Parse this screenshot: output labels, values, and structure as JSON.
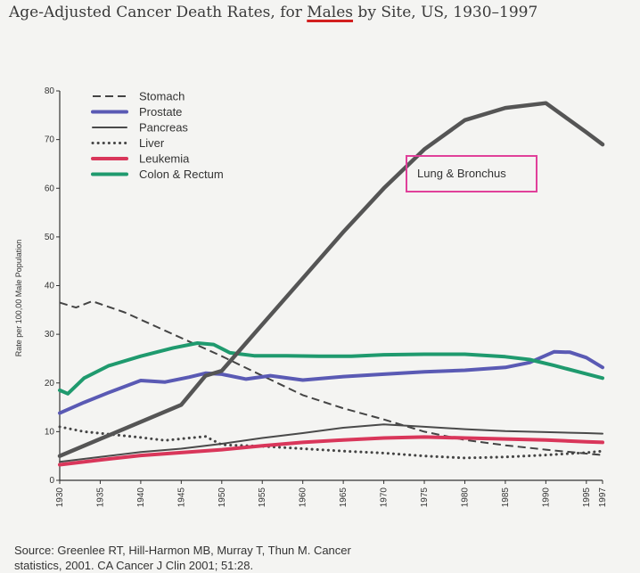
{
  "title": {
    "prefix": "Age-Adjusted Cancer Death Rates, for ",
    "emphasis": "Males",
    "suffix": " by Site, US, 1930–1997"
  },
  "source": {
    "line1": "Source: Greenlee RT, Hill-Harmon MB, Murray T, Thun M. Cancer",
    "line2": "statistics, 2001. CA Cancer J Clin 2001; 51:28."
  },
  "chart_data": {
    "type": "line",
    "title": "Age-Adjusted Cancer Death Rates, for Males by Site, US, 1930–1997",
    "xlabel": "",
    "ylabel": "Rate per 100,00 Male Population",
    "xlim": [
      1930,
      1997
    ],
    "ylim": [
      0,
      80
    ],
    "xticks": [
      "1930",
      "1935",
      "1940",
      "1945",
      "1950",
      "1955",
      "1960",
      "1965",
      "1970",
      "1975",
      "1980",
      "1985",
      "1990",
      "1995",
      "1997"
    ],
    "yticks": [
      "0",
      "10",
      "20",
      "30",
      "40",
      "50",
      "60",
      "70",
      "80"
    ],
    "grid": false,
    "legend_position": "top-left",
    "annotation": {
      "text": "Lung & Bronchus",
      "border_color": "#e0409a"
    },
    "series": [
      {
        "name": "Stomach",
        "color": "#444444",
        "style": "dashed",
        "points": [
          [
            1930,
            36.5
          ],
          [
            1932,
            35.5
          ],
          [
            1934,
            36.8
          ],
          [
            1938,
            34.5
          ],
          [
            1942,
            31.5
          ],
          [
            1946,
            28.5
          ],
          [
            1950,
            25.5
          ],
          [
            1955,
            21.5
          ],
          [
            1960,
            17.5
          ],
          [
            1965,
            14.8
          ],
          [
            1970,
            12.5
          ],
          [
            1975,
            10
          ],
          [
            1980,
            8.3
          ],
          [
            1985,
            7.2
          ],
          [
            1990,
            6.3
          ],
          [
            1995,
            5.5
          ],
          [
            1997,
            5.2
          ]
        ]
      },
      {
        "name": "Prostate",
        "color": "#5a5ab4",
        "style": "solid",
        "points": [
          [
            1930,
            13.8
          ],
          [
            1933,
            16
          ],
          [
            1936,
            18
          ],
          [
            1940,
            20.5
          ],
          [
            1943,
            20.2
          ],
          [
            1946,
            21.2
          ],
          [
            1948,
            22
          ],
          [
            1950,
            21.8
          ],
          [
            1953,
            20.8
          ],
          [
            1956,
            21.5
          ],
          [
            1960,
            20.6
          ],
          [
            1965,
            21.3
          ],
          [
            1970,
            21.8
          ],
          [
            1975,
            22.3
          ],
          [
            1980,
            22.6
          ],
          [
            1985,
            23.2
          ],
          [
            1988,
            24.2
          ],
          [
            1991,
            26.4
          ],
          [
            1993,
            26.3
          ],
          [
            1995,
            25.2
          ],
          [
            1997,
            23.2
          ]
        ]
      },
      {
        "name": "Pancreas",
        "color": "#4a4a4a",
        "style": "solid",
        "points": [
          [
            1930,
            3.8
          ],
          [
            1935,
            4.8
          ],
          [
            1940,
            5.8
          ],
          [
            1945,
            6.5
          ],
          [
            1950,
            7.5
          ],
          [
            1955,
            8.7
          ],
          [
            1960,
            9.7
          ],
          [
            1965,
            10.8
          ],
          [
            1970,
            11.5
          ],
          [
            1975,
            11
          ],
          [
            1980,
            10.5
          ],
          [
            1985,
            10.1
          ],
          [
            1990,
            9.9
          ],
          [
            1995,
            9.7
          ],
          [
            1997,
            9.6
          ]
        ]
      },
      {
        "name": "Liver",
        "color": "#444444",
        "style": "dotted",
        "points": [
          [
            1930,
            11
          ],
          [
            1933,
            10
          ],
          [
            1936,
            9.5
          ],
          [
            1940,
            8.8
          ],
          [
            1943,
            8.2
          ],
          [
            1946,
            8.7
          ],
          [
            1948,
            9
          ],
          [
            1950,
            7.3
          ],
          [
            1955,
            7
          ],
          [
            1960,
            6.5
          ],
          [
            1965,
            6
          ],
          [
            1970,
            5.6
          ],
          [
            1975,
            5
          ],
          [
            1980,
            4.6
          ],
          [
            1985,
            4.8
          ],
          [
            1990,
            5.2
          ],
          [
            1995,
            5.7
          ],
          [
            1997,
            6
          ]
        ]
      },
      {
        "name": "Leukemia",
        "color": "#d9365a",
        "style": "solid",
        "points": [
          [
            1930,
            3.2
          ],
          [
            1935,
            4.2
          ],
          [
            1940,
            5.1
          ],
          [
            1945,
            5.7
          ],
          [
            1950,
            6.3
          ],
          [
            1955,
            7.1
          ],
          [
            1960,
            7.8
          ],
          [
            1965,
            8.3
          ],
          [
            1970,
            8.7
          ],
          [
            1975,
            8.9
          ],
          [
            1980,
            8.7
          ],
          [
            1985,
            8.5
          ],
          [
            1990,
            8.3
          ],
          [
            1995,
            7.9
          ],
          [
            1997,
            7.8
          ]
        ]
      },
      {
        "name": "Colon & Rectum",
        "color": "#1f9a6e",
        "style": "solid",
        "points": [
          [
            1930,
            18.5
          ],
          [
            1931,
            17.8
          ],
          [
            1933,
            21
          ],
          [
            1936,
            23.5
          ],
          [
            1940,
            25.5
          ],
          [
            1944,
            27.2
          ],
          [
            1947,
            28.2
          ],
          [
            1949,
            27.9
          ],
          [
            1951,
            26.2
          ],
          [
            1954,
            25.6
          ],
          [
            1958,
            25.6
          ],
          [
            1962,
            25.5
          ],
          [
            1966,
            25.5
          ],
          [
            1970,
            25.8
          ],
          [
            1975,
            25.9
          ],
          [
            1980,
            25.9
          ],
          [
            1985,
            25.4
          ],
          [
            1988,
            24.8
          ],
          [
            1991,
            23.6
          ],
          [
            1994,
            22.3
          ],
          [
            1997,
            21
          ]
        ]
      },
      {
        "name": "",
        "color": "#555555",
        "style": "solid",
        "thick": true,
        "points": [
          [
            1930,
            5
          ],
          [
            1935,
            8.5
          ],
          [
            1940,
            12
          ],
          [
            1945,
            15.5
          ],
          [
            1948,
            21.5
          ],
          [
            1950,
            22.5
          ],
          [
            1955,
            32
          ],
          [
            1960,
            41.5
          ],
          [
            1965,
            51
          ],
          [
            1970,
            60
          ],
          [
            1975,
            68
          ],
          [
            1980,
            74
          ],
          [
            1985,
            76.5
          ],
          [
            1990,
            77.5
          ],
          [
            1995,
            71.5
          ],
          [
            1997,
            69
          ]
        ]
      }
    ]
  }
}
